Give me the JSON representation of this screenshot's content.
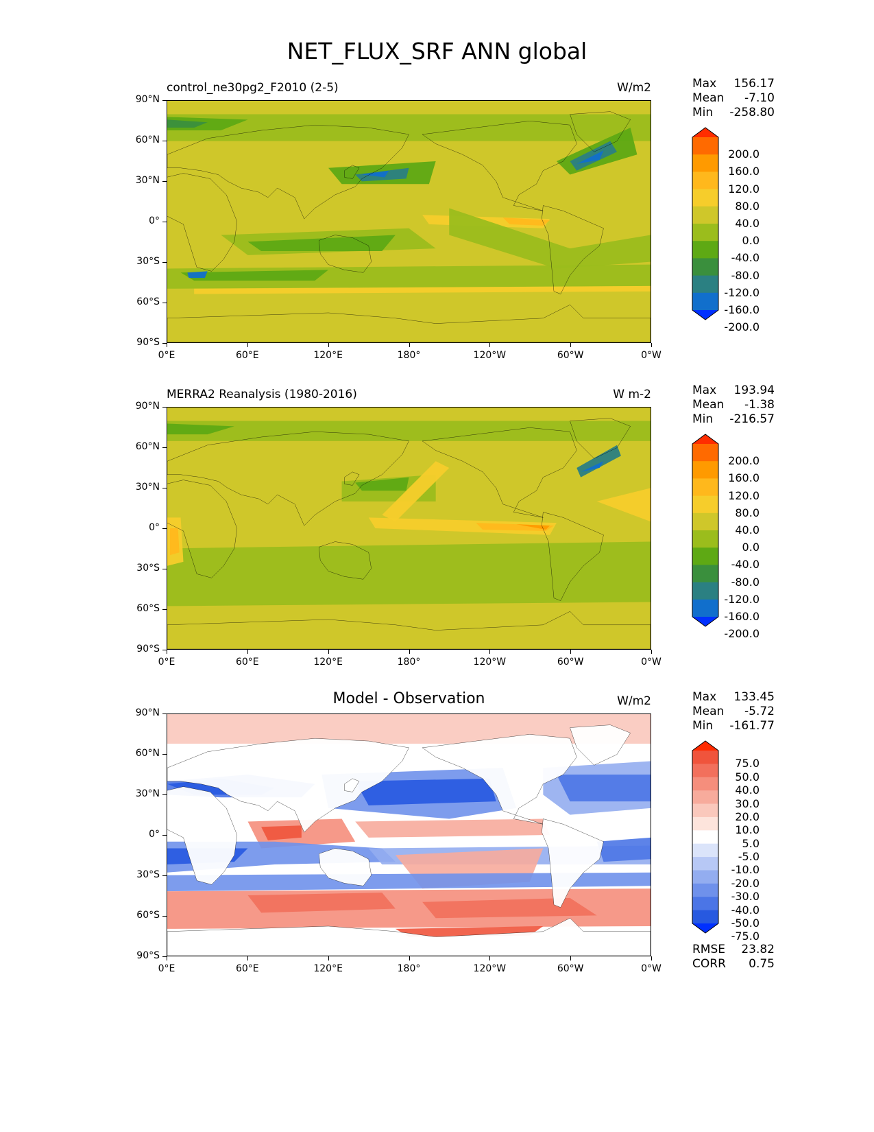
{
  "figure": {
    "title": "NET_FLUX_SRF ANN global"
  },
  "axes": {
    "lat_ticks": [
      "90°N",
      "60°N",
      "30°N",
      "0°",
      "30°S",
      "60°S",
      "90°S"
    ],
    "lon_ticks": [
      "0°E",
      "60°E",
      "120°E",
      "180°",
      "120°W",
      "60°W",
      "0°W"
    ]
  },
  "panels": [
    {
      "title": "control_ne30pg2_F2010 (2-5)",
      "title_position": "left",
      "units": "W/m2",
      "stats": [
        {
          "label": "Max",
          "value": "156.17"
        },
        {
          "label": "Mean",
          "value": "-7.10"
        },
        {
          "label": "Min",
          "value": "-258.80"
        }
      ],
      "colorbar": {
        "labels": [
          "200.0",
          "160.0",
          "120.0",
          "80.0",
          "40.0",
          "0.0",
          "-40.0",
          "-80.0",
          "-120.0",
          "-160.0",
          "-200.0"
        ],
        "colors": [
          "#ff2d00",
          "#ff6a00",
          "#ff9a00",
          "#ffb81c",
          "#f6cd2b",
          "#cfc72a",
          "#9bbd1c",
          "#5ea914",
          "#3a8f3d",
          "#2b8082",
          "#116fcc",
          "#0030ff"
        ]
      }
    },
    {
      "title": "MERRA2 Reanalysis (1980-2016)",
      "title_position": "left",
      "units": "W m-2",
      "stats": [
        {
          "label": "Max",
          "value": "193.94"
        },
        {
          "label": "Mean",
          "value": "-1.38"
        },
        {
          "label": "Min",
          "value": "-216.57"
        }
      ],
      "colorbar": {
        "labels": [
          "200.0",
          "160.0",
          "120.0",
          "80.0",
          "40.0",
          "0.0",
          "-40.0",
          "-80.0",
          "-120.0",
          "-160.0",
          "-200.0"
        ],
        "colors": [
          "#ff2d00",
          "#ff6a00",
          "#ff9a00",
          "#ffb81c",
          "#f6cd2b",
          "#cfc72a",
          "#9bbd1c",
          "#5ea914",
          "#3a8f3d",
          "#2b8082",
          "#116fcc",
          "#0030ff"
        ]
      }
    },
    {
      "title": "Model - Observation",
      "title_position": "center",
      "units": "W/m2",
      "stats": [
        {
          "label": "Max",
          "value": "133.45"
        },
        {
          "label": "Mean",
          "value": "-5.72"
        },
        {
          "label": "Min",
          "value": "-161.77"
        }
      ],
      "colorbar": {
        "labels": [
          "75.0",
          "50.0",
          "40.0",
          "30.0",
          "20.0",
          "10.0",
          "5.0",
          "-5.0",
          "-10.0",
          "-20.0",
          "-30.0",
          "-40.0",
          "-50.0",
          "-75.0"
        ],
        "colors": [
          "#ff2a00",
          "#f0543c",
          "#f2705c",
          "#f58e7c",
          "#f7ab9c",
          "#fac8bc",
          "#fde4dc",
          "#ffffff",
          "#dbe4fa",
          "#b7c8f5",
          "#93adf0",
          "#6f91eb",
          "#4b75e6",
          "#2759e0",
          "#0030ff"
        ]
      },
      "extra_stats": [
        {
          "label": "RMSE",
          "value": "23.82"
        },
        {
          "label": "CORR",
          "value": "0.75"
        }
      ]
    }
  ],
  "chart_data": [
    {
      "type": "heatmap",
      "title": "control_ne30pg2_F2010 (2-5)",
      "units": "W/m2",
      "xlabel": "",
      "ylabel": "",
      "xlim": [
        0,
        360
      ],
      "ylim": [
        -90,
        90
      ],
      "colorbar_levels": [
        -200,
        -160,
        -120,
        -80,
        -40,
        0,
        40,
        80,
        120,
        160,
        200
      ],
      "stats": {
        "max": 156.17,
        "mean": -7.1,
        "min": -258.8
      }
    },
    {
      "type": "heatmap",
      "title": "MERRA2 Reanalysis (1980-2016)",
      "units": "W m-2",
      "xlabel": "",
      "ylabel": "",
      "xlim": [
        0,
        360
      ],
      "ylim": [
        -90,
        90
      ],
      "colorbar_levels": [
        -200,
        -160,
        -120,
        -80,
        -40,
        0,
        40,
        80,
        120,
        160,
        200
      ],
      "stats": {
        "max": 193.94,
        "mean": -1.38,
        "min": -216.57
      }
    },
    {
      "type": "heatmap",
      "title": "Model - Observation",
      "units": "W/m2",
      "xlabel": "",
      "ylabel": "",
      "xlim": [
        0,
        360
      ],
      "ylim": [
        -90,
        90
      ],
      "colorbar_levels": [
        -75,
        -50,
        -40,
        -30,
        -20,
        -10,
        -5,
        5,
        10,
        20,
        30,
        40,
        50,
        75
      ],
      "stats": {
        "max": 133.45,
        "mean": -5.72,
        "min": -161.77,
        "rmse": 23.82,
        "corr": 0.75
      }
    }
  ]
}
